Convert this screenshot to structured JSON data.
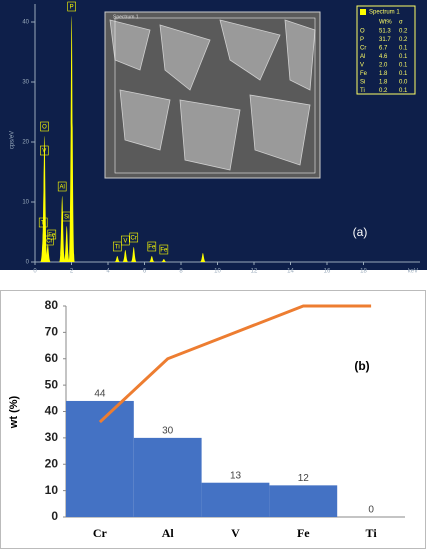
{
  "chart_data": [
    {
      "type": "spectrum",
      "ylabel": "cps/eV",
      "xlabel": "keV",
      "annotation": "(a)",
      "color": "#ffff00",
      "x": [
        0.45,
        0.52,
        0.51,
        0.57,
        0.7,
        1.49,
        1.74,
        2.01,
        4.51,
        4.95,
        5.41,
        6.4,
        7.06,
        9.2
      ],
      "values": [
        5,
        21,
        17,
        2,
        3,
        11,
        6,
        41,
        1,
        2,
        2.5,
        1,
        0.5,
        1.5
      ],
      "labels": [
        "Ti",
        "O",
        "V",
        "Cr",
        "Fe",
        "Al",
        "Si",
        "P",
        "Ti",
        "V",
        "Cr",
        "Fe",
        "Fe",
        null
      ],
      "xlim": [
        0,
        20
      ],
      "xticks": [
        0,
        2,
        4,
        6,
        8,
        10,
        12,
        14,
        16,
        18
      ],
      "ylim": [
        0,
        43
      ],
      "yticks": [
        0,
        10,
        20,
        30,
        40
      ],
      "table": {
        "title": "Spectrum 1",
        "columns": [
          "Wt%",
          "σ"
        ],
        "rows": [
          [
            "O",
            "51.3",
            "0.2"
          ],
          [
            "P",
            "31.7",
            "0.2"
          ],
          [
            "Cr",
            "6.7",
            "0.1"
          ],
          [
            "Al",
            "4.6",
            "0.1"
          ],
          [
            "V",
            "2.0",
            "0.1"
          ],
          [
            "Fe",
            "1.8",
            "0.1"
          ],
          [
            "Si",
            "1.8",
            "0.0"
          ],
          [
            "Ti",
            "0.2",
            "0.1"
          ]
        ]
      },
      "inset_label": "Spectrum 1"
    },
    {
      "type": "bar",
      "ylabel": "wt (%)",
      "annotation": "(b)",
      "categories": [
        "Cr",
        "Al",
        "V",
        "Fe",
        "Ti"
      ],
      "series": [
        {
          "type": "bar",
          "color": "#4472c4",
          "values": [
            44,
            30,
            13,
            12,
            0
          ]
        },
        {
          "type": "line",
          "color": "#ed7d31",
          "values": [
            36,
            60,
            70,
            80,
            80
          ]
        }
      ],
      "ylim": [
        0,
        80
      ],
      "yticks": [
        0,
        10,
        20,
        30,
        40,
        50,
        60,
        70,
        80
      ]
    }
  ]
}
